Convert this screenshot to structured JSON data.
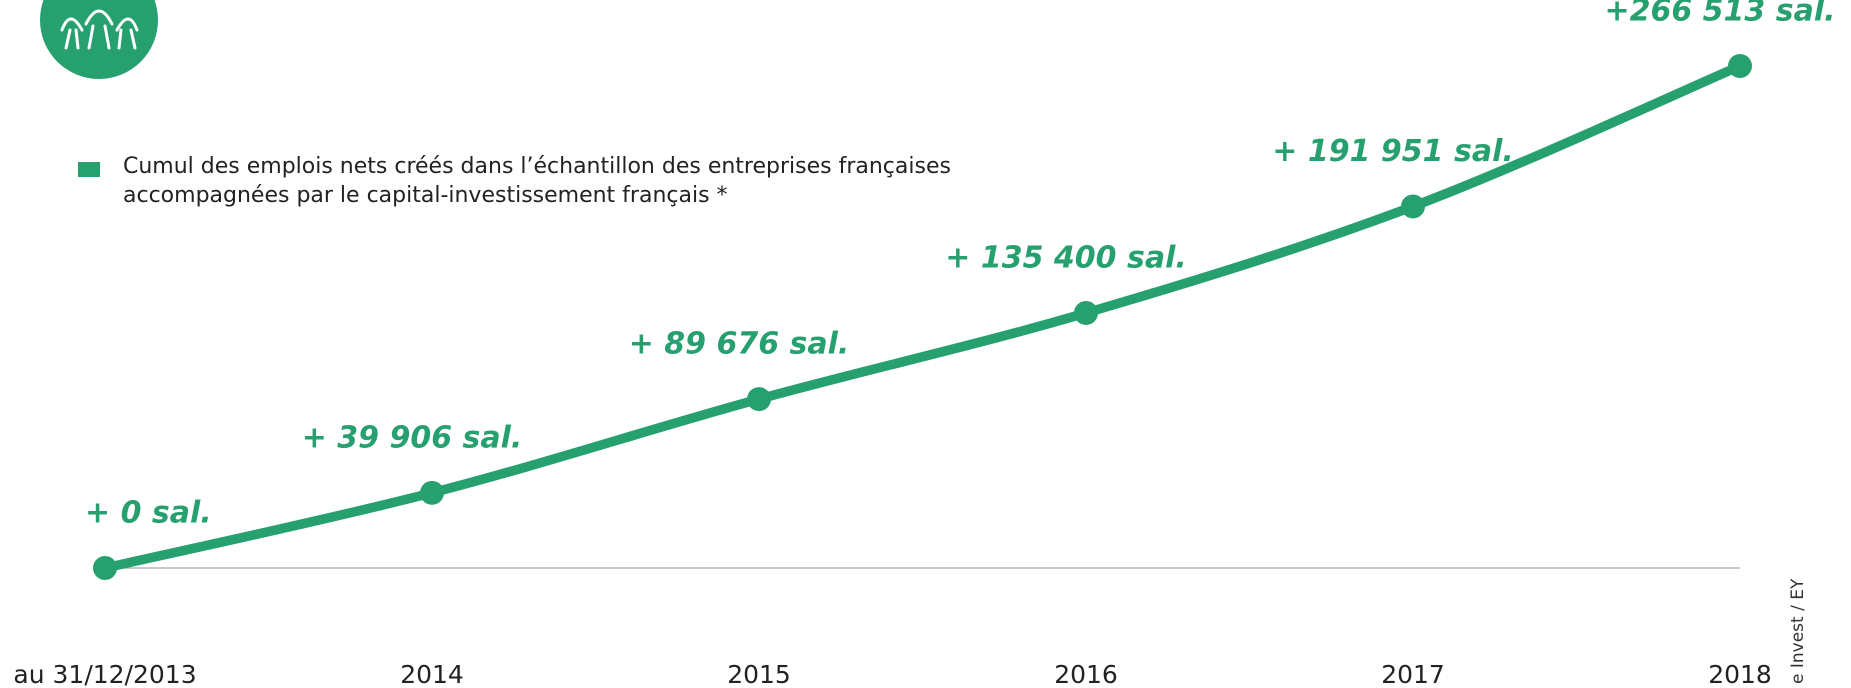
{
  "chart_data": {
    "type": "line",
    "categories": [
      "au 31/12/2013",
      "2014",
      "2015",
      "2016",
      "2017",
      "2018"
    ],
    "series": [
      {
        "name": "Cumul des emplois nets créés dans l’échantillon des entreprises françaises accompagnées par le capital-investissement français *",
        "color": "#26a06f",
        "values": [
          0,
          39906,
          89676,
          135400,
          191951,
          266513
        ],
        "value_labels": [
          "+  0 sal.",
          "+ 39 906 sal.",
          "+ 89 676 sal.",
          "+ 135 400 sal.",
          "+ 191 951 sal.",
          "+266 513 sal."
        ]
      }
    ],
    "ylim": [
      0,
      266513
    ],
    "source": "e Invest / EY"
  }
}
